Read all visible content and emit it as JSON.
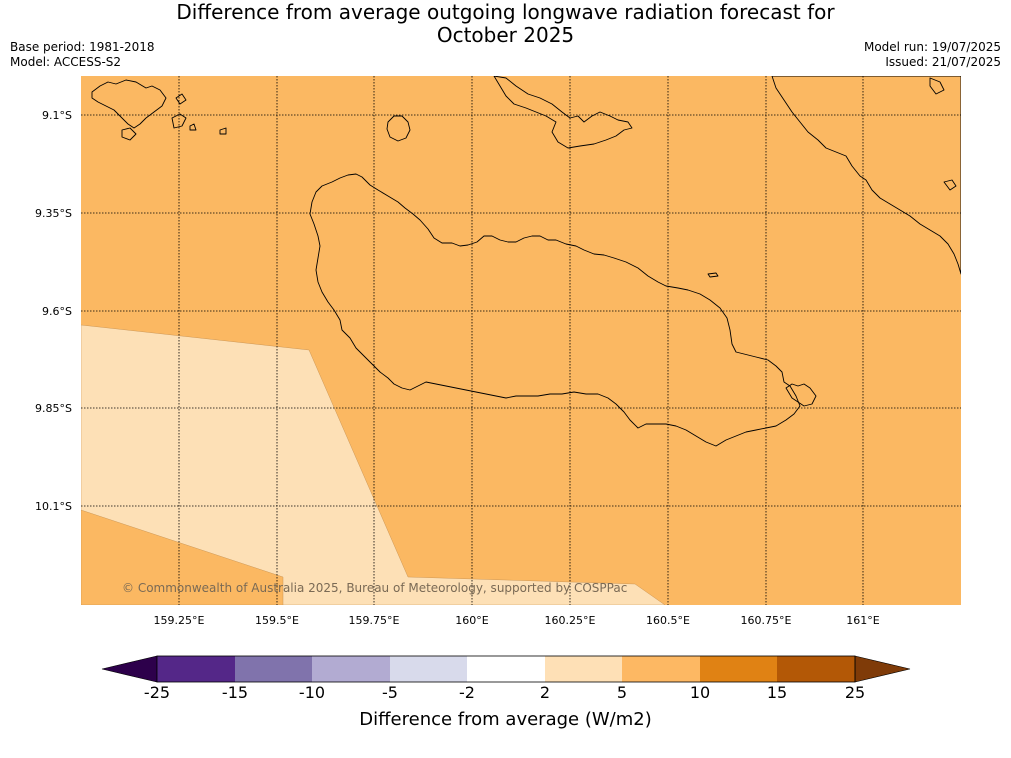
{
  "header": {
    "title_line1": "Difference from average outgoing longwave radiation forecast for",
    "title_line2": "October 2025",
    "base_period": "Base period: 1981-2018",
    "model": "Model: ACCESS-S2",
    "model_run": "Model run: 19/07/2025",
    "issued": "Issued: 21/07/2025"
  },
  "map": {
    "lat_labels": [
      "9.1°S",
      "9.35°S",
      "9.6°S",
      "9.85°S",
      "10.1°S"
    ],
    "lon_labels": [
      "159.25°E",
      "159.5°E",
      "159.75°E",
      "160°E",
      "160.25°E",
      "160.5°E",
      "160.75°E",
      "161°E"
    ],
    "copyright": "© Commonwealth of Australia 2025, Bureau of Meteorology, supported by COSPPac",
    "colors": {
      "band_5_10": "#fbb862",
      "band_2_5": "#fde0b6",
      "coastline": "#000000"
    }
  },
  "colorbar": {
    "title": "Difference from average (W/m2)",
    "tick_labels": [
      "-25",
      "-15",
      "-10",
      "-5",
      "-2",
      "2",
      "5",
      "10",
      "15",
      "25"
    ],
    "colors": [
      "#2d004b",
      "#542788",
      "#8073ac",
      "#b2abd2",
      "#d8daeb",
      "#ffffff",
      "#fee0b6",
      "#fdb863",
      "#e08214",
      "#b35806",
      "#7f3b08"
    ]
  }
}
